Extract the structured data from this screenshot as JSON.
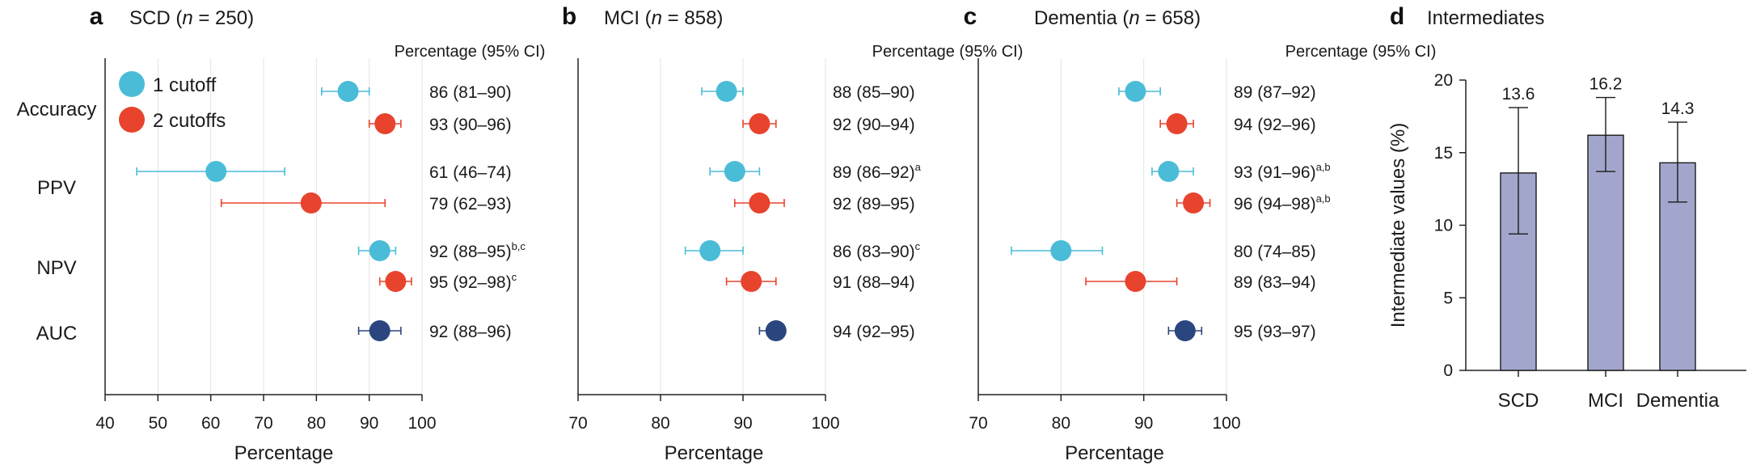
{
  "figure": {
    "panels": [
      {
        "letter": "a",
        "title": "SCD (",
        "n_italic": "n",
        "n_rest": " = 250)"
      },
      {
        "letter": "b",
        "title": "MCI (",
        "n_italic": "n",
        "n_rest": " = 858)"
      },
      {
        "letter": "c",
        "title": "Dementia (",
        "n_italic": "n",
        "n_rest": " = 658)"
      },
      {
        "letter": "d",
        "title": "Intermediates"
      }
    ],
    "legend": {
      "one_cutoff": "1 cutoff",
      "two_cutoffs": "2 cutoffs"
    },
    "ci_header": "Percentage (95% CI)",
    "xlabel": "Percentage",
    "metrics": [
      "Accuracy",
      "PPV",
      "NPV",
      "AUC"
    ],
    "colors": {
      "one_cutoff": "#4bbcd8",
      "two_cutoffs": "#e8432d",
      "auc": "#2b467f",
      "bar": "#a3a6cc"
    }
  },
  "chart_data": [
    {
      "type": "scatter",
      "panel": "a",
      "title": "SCD (n = 250)",
      "xlabel": "Percentage",
      "xlim": [
        40,
        100
      ],
      "xticks": [
        40,
        50,
        60,
        70,
        80,
        90,
        100
      ],
      "points": [
        {
          "metric": "Accuracy",
          "series": "1 cutoff",
          "value": 86,
          "ci": [
            81,
            90
          ],
          "label": "86 (81–90)",
          "sup": ""
        },
        {
          "metric": "Accuracy",
          "series": "2 cutoffs",
          "value": 93,
          "ci": [
            90,
            96
          ],
          "label": "93 (90–96)",
          "sup": ""
        },
        {
          "metric": "PPV",
          "series": "1 cutoff",
          "value": 61,
          "ci": [
            46,
            74
          ],
          "label": "61 (46–74)",
          "sup": ""
        },
        {
          "metric": "PPV",
          "series": "2 cutoffs",
          "value": 79,
          "ci": [
            62,
            93
          ],
          "label": "79 (62–93)",
          "sup": ""
        },
        {
          "metric": "NPV",
          "series": "1 cutoff",
          "value": 92,
          "ci": [
            88,
            95
          ],
          "label": "92 (88–95)",
          "sup": "b,c"
        },
        {
          "metric": "NPV",
          "series": "2 cutoffs",
          "value": 95,
          "ci": [
            92,
            98
          ],
          "label": "95 (92–98)",
          "sup": "c"
        },
        {
          "metric": "AUC",
          "series": "AUC",
          "value": 92,
          "ci": [
            88,
            96
          ],
          "label": "92 (88–96)",
          "sup": ""
        }
      ]
    },
    {
      "type": "scatter",
      "panel": "b",
      "title": "MCI (n = 858)",
      "xlabel": "Percentage",
      "xlim": [
        70,
        100
      ],
      "xticks": [
        70,
        80,
        90,
        100
      ],
      "points": [
        {
          "metric": "Accuracy",
          "series": "1 cutoff",
          "value": 88,
          "ci": [
            85,
            90
          ],
          "label": "88 (85–90)",
          "sup": ""
        },
        {
          "metric": "Accuracy",
          "series": "2 cutoffs",
          "value": 92,
          "ci": [
            90,
            94
          ],
          "label": "92 (90–94)",
          "sup": ""
        },
        {
          "metric": "PPV",
          "series": "1 cutoff",
          "value": 89,
          "ci": [
            86,
            92
          ],
          "label": "89 (86–92)",
          "sup": "a"
        },
        {
          "metric": "PPV",
          "series": "2 cutoffs",
          "value": 92,
          "ci": [
            89,
            95
          ],
          "label": "92 (89–95)",
          "sup": ""
        },
        {
          "metric": "NPV",
          "series": "1 cutoff",
          "value": 86,
          "ci": [
            83,
            90
          ],
          "label": "86 (83–90)",
          "sup": "c"
        },
        {
          "metric": "NPV",
          "series": "2 cutoffs",
          "value": 91,
          "ci": [
            88,
            94
          ],
          "label": "91 (88–94)",
          "sup": ""
        },
        {
          "metric": "AUC",
          "series": "AUC",
          "value": 94,
          "ci": [
            92,
            95
          ],
          "label": "94 (92–95)",
          "sup": ""
        }
      ]
    },
    {
      "type": "scatter",
      "panel": "c",
      "title": "Dementia (n = 658)",
      "xlabel": "Percentage",
      "xlim": [
        70,
        100
      ],
      "xticks": [
        70,
        80,
        90,
        100
      ],
      "points": [
        {
          "metric": "Accuracy",
          "series": "1 cutoff",
          "value": 89,
          "ci": [
            87,
            92
          ],
          "label": "89 (87–92)",
          "sup": ""
        },
        {
          "metric": "Accuracy",
          "series": "2 cutoffs",
          "value": 94,
          "ci": [
            92,
            96
          ],
          "label": "94 (92–96)",
          "sup": ""
        },
        {
          "metric": "PPV",
          "series": "1 cutoff",
          "value": 93,
          "ci": [
            91,
            96
          ],
          "label": "93 (91–96)",
          "sup": "a,b"
        },
        {
          "metric": "PPV",
          "series": "2 cutoffs",
          "value": 96,
          "ci": [
            94,
            98
          ],
          "label": "96 (94–98)",
          "sup": "a,b"
        },
        {
          "metric": "NPV",
          "series": "1 cutoff",
          "value": 80,
          "ci": [
            74,
            85
          ],
          "label": "80 (74–85)",
          "sup": ""
        },
        {
          "metric": "NPV",
          "series": "2 cutoffs",
          "value": 89,
          "ci": [
            83,
            94
          ],
          "label": "89 (83–94)",
          "sup": ""
        },
        {
          "metric": "AUC",
          "series": "AUC",
          "value": 95,
          "ci": [
            93,
            97
          ],
          "label": "95 (93–97)",
          "sup": ""
        }
      ]
    },
    {
      "type": "bar",
      "panel": "d",
      "title": "Intermediates",
      "ylabel": "Intermediate values (%)",
      "ylim": [
        0,
        20
      ],
      "yticks": [
        0,
        5,
        10,
        15,
        20
      ],
      "categories": [
        "SCD",
        "MCI",
        "Dementia"
      ],
      "values": [
        13.6,
        16.2,
        14.3
      ],
      "value_labels": [
        "13.6",
        "16.2",
        "14.3"
      ],
      "error_low": [
        9.4,
        13.7,
        11.6
      ],
      "error_high": [
        18.1,
        18.8,
        17.1
      ]
    }
  ]
}
